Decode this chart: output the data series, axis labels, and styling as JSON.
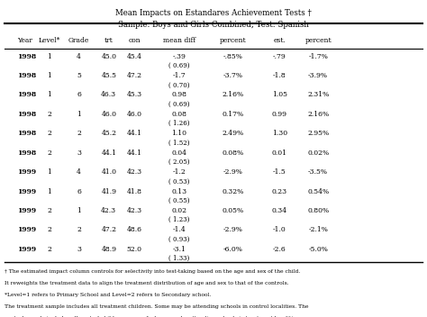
{
  "title_line1": "Mean Impacts on Estandares Achievement Tests †",
  "title_line2": "Sample: Boys and Girls Combined, Test: Spanish",
  "headers": [
    "Year",
    "Level*",
    "Grade",
    "trt",
    "con",
    "mean diff",
    "percent",
    "est.",
    "percent"
  ],
  "rows": [
    {
      "year": "1998",
      "level": "1",
      "grade": "4",
      "trt": "45.0",
      "con": "45.4",
      "mean_diff": "-.39",
      "mean_diff_sub": "( 0.69)",
      "percent": "-.85%",
      "est": "-.79",
      "est_percent": "-1.7%"
    },
    {
      "year": "1998",
      "level": "1",
      "grade": "5",
      "trt": "45.5",
      "con": "47.2",
      "mean_diff": "-1.7",
      "mean_diff_sub": "( 0.70)",
      "percent": "-3.7%",
      "est": "-1.8",
      "est_percent": "-3.9%"
    },
    {
      "year": "1998",
      "level": "1",
      "grade": "6",
      "trt": "46.3",
      "con": "45.3",
      "mean_diff": "0.98",
      "mean_diff_sub": "( 0.69)",
      "percent": "2.16%",
      "est": "1.05",
      "est_percent": "2.31%"
    },
    {
      "year": "1998",
      "level": "2",
      "grade": "1",
      "trt": "46.0",
      "con": "46.0",
      "mean_diff": "0.08",
      "mean_diff_sub": "( 1.26)",
      "percent": "0.17%",
      "est": "0.99",
      "est_percent": "2.16%"
    },
    {
      "year": "1998",
      "level": "2",
      "grade": "2",
      "trt": "45.2",
      "con": "44.1",
      "mean_diff": "1.10",
      "mean_diff_sub": "( 1.52)",
      "percent": "2.49%",
      "est": "1.30",
      "est_percent": "2.95%"
    },
    {
      "year": "1998",
      "level": "2",
      "grade": "3",
      "trt": "44.1",
      "con": "44.1",
      "mean_diff": "0.04",
      "mean_diff_sub": "( 2.05)",
      "percent": "0.08%",
      "est": "0.01",
      "est_percent": "0.02%"
    },
    {
      "year": "1999",
      "level": "1",
      "grade": "4",
      "trt": "41.0",
      "con": "42.3",
      "mean_diff": "-1.2",
      "mean_diff_sub": "( 0.53)",
      "percent": "-2.9%",
      "est": "-1.5",
      "est_percent": "-3.5%"
    },
    {
      "year": "1999",
      "level": "1",
      "grade": "6",
      "trt": "41.9",
      "con": "41.8",
      "mean_diff": "0.13",
      "mean_diff_sub": "( 0.55)",
      "percent": "0.32%",
      "est": "0.23",
      "est_percent": "0.54%"
    },
    {
      "year": "1999",
      "level": "2",
      "grade": "1",
      "trt": "42.3",
      "con": "42.3",
      "mean_diff": "0.02",
      "mean_diff_sub": "( 1.23)",
      "percent": "0.05%",
      "est": "0.34",
      "est_percent": "0.80%"
    },
    {
      "year": "1999",
      "level": "2",
      "grade": "2",
      "trt": "47.2",
      "con": "48.6",
      "mean_diff": "-1.4",
      "mean_diff_sub": "( 0.93)",
      "percent": "-2.9%",
      "est": "-1.0",
      "est_percent": "-2.1%"
    },
    {
      "year": "1999",
      "level": "2",
      "grade": "3",
      "trt": "48.9",
      "con": "52.0",
      "mean_diff": "-3.1",
      "mean_diff_sub": "( 1.33)",
      "percent": "-6.0%",
      "est": "-2.6",
      "est_percent": "-5.0%"
    }
  ],
  "footnotes": [
    "† The estimated impact column controls for selectivity into test-taking based on the age and sex of the child. It reweights the treatment data to align the treatment distribution of age and sex to that of the controls.",
    "*Level=1 refers to Primary School and Level=2 refers to Secondary school.",
    "The treatment sample includes all treatment children. Some may be attending schools in control localities. The control sample includes all control children, some of whom may be attending schools in treatment localities"
  ],
  "bg_color": "#ffffff",
  "text_color": "#000000",
  "header_line_color": "#000000"
}
